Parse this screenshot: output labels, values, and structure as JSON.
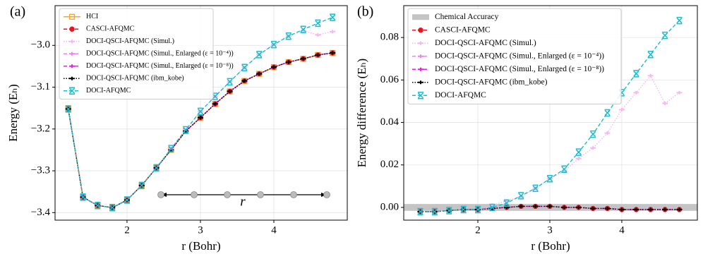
{
  "chart_data": [
    {
      "type": "line",
      "panel_label": "(a)",
      "x_label": "r (Bohr)",
      "y_label": "Energy (Eₕ)",
      "annotation": "r",
      "x": [
        1.2,
        1.4,
        1.6,
        1.8,
        2.0,
        2.2,
        2.4,
        2.6,
        2.8,
        3.0,
        3.2,
        3.4,
        3.6,
        3.8,
        4.0,
        4.2,
        4.4,
        4.6,
        4.8
      ],
      "xlim": [
        1.02,
        5.0
      ],
      "xticks": [
        2,
        3,
        4
      ],
      "ylim": [
        -3.418,
        -2.905
      ],
      "yticks": [
        {
          "value": -3.4,
          "label": "−3.4"
        },
        {
          "value": -3.3,
          "label": "−3.3"
        },
        {
          "value": -3.2,
          "label": "−3.2"
        },
        {
          "value": -3.1,
          "label": "−3.1"
        },
        {
          "value": -3.0,
          "label": "−3.0"
        }
      ],
      "grid": true,
      "legend": "upper left",
      "series": [
        {
          "name": "HCI",
          "color": "#f5a623",
          "marker": "s",
          "dash": "solid",
          "values": [
            -3.152,
            -3.363,
            -3.383,
            -3.388,
            -3.37,
            -3.335,
            -3.293,
            -3.25,
            -3.205,
            -3.173,
            -3.14,
            -3.11,
            -3.085,
            -3.068,
            -3.052,
            -3.04,
            -3.032,
            -3.023,
            -3.018
          ]
        },
        {
          "name": "CASCI-AFQMC",
          "color": "#e8141e",
          "marker": "o",
          "dash": "dashed",
          "values": [
            -3.152,
            -3.363,
            -3.383,
            -3.388,
            -3.37,
            -3.335,
            -3.293,
            -3.25,
            -3.205,
            -3.173,
            -3.14,
            -3.11,
            -3.085,
            -3.068,
            -3.052,
            -3.04,
            -3.032,
            -3.023,
            -3.018
          ]
        },
        {
          "name": "DOCI-QSCI-AFQMC (Simul.)",
          "color": "#f7b6f0",
          "marker": "_",
          "dash": "dotted",
          "values": [
            -3.152,
            -3.363,
            -3.383,
            -3.388,
            -3.37,
            -3.335,
            -3.293,
            -3.247,
            -3.202,
            -3.158,
            -3.122,
            -3.087,
            -3.053,
            -3.022,
            -2.998,
            -2.978,
            -2.965,
            -2.975,
            -2.967
          ]
        },
        {
          "name": "DOCI-QSCI-AFQMC (Simul., Enlarged (ε = 10⁻⁴))",
          "color": "#ee82ee",
          "marker": "_",
          "dash": "dashed",
          "values": [
            -3.152,
            -3.363,
            -3.383,
            -3.388,
            -3.37,
            -3.335,
            -3.293,
            -3.25,
            -3.205,
            -3.173,
            -3.14,
            -3.11,
            -3.085,
            -3.068,
            -3.052,
            -3.04,
            -3.032,
            -3.023,
            -3.018
          ]
        },
        {
          "name": "DOCI-QSCI-AFQMC (Simul., Enlarged (ε = 10⁻⁸))",
          "color": "#e61ee6",
          "marker": "_",
          "dash": "dashed",
          "values": [
            -3.152,
            -3.363,
            -3.383,
            -3.388,
            -3.37,
            -3.335,
            -3.293,
            -3.25,
            -3.205,
            -3.173,
            -3.14,
            -3.11,
            -3.085,
            -3.068,
            -3.052,
            -3.04,
            -3.032,
            -3.023,
            -3.018
          ]
        },
        {
          "name": "DOCI-QSCI-AFQMC (ibm_kobe)",
          "color": "#000000",
          "marker": "_",
          "dash": "dotted",
          "values": [
            -3.152,
            -3.363,
            -3.383,
            -3.388,
            -3.37,
            -3.335,
            -3.293,
            -3.25,
            -3.205,
            -3.173,
            -3.14,
            -3.11,
            -3.085,
            -3.068,
            -3.052,
            -3.04,
            -3.032,
            -3.023,
            -3.018
          ]
        },
        {
          "name": "DOCI-AFQMC",
          "color": "#17becf",
          "marker": "x",
          "dash": "dashed",
          "values": [
            -3.152,
            -3.363,
            -3.383,
            -3.388,
            -3.37,
            -3.335,
            -3.293,
            -3.247,
            -3.202,
            -3.158,
            -3.122,
            -3.087,
            -3.053,
            -3.022,
            -2.998,
            -2.978,
            -2.962,
            -2.947,
            -2.933
          ]
        }
      ]
    },
    {
      "type": "line",
      "panel_label": "(b)",
      "x_label": "r (Bohr)",
      "y_label": "Energy difference (Eₕ)",
      "x": [
        1.2,
        1.4,
        1.6,
        1.8,
        2.0,
        2.2,
        2.4,
        2.6,
        2.8,
        3.0,
        3.2,
        3.4,
        3.6,
        3.8,
        4.0,
        4.2,
        4.4,
        4.6,
        4.8
      ],
      "xlim": [
        0.97,
        5.05
      ],
      "xticks": [
        2,
        3,
        4
      ],
      "ylim": [
        -0.006,
        0.095
      ],
      "yticks": [
        {
          "value": 0,
          "label": "0.00"
        },
        0.02,
        0.04,
        0.06,
        0.08
      ],
      "grid": true,
      "legend": "upper left",
      "band": {
        "name": "Chemical Accuracy",
        "color": "#c4c4c4",
        "range": [
          -0.0016,
          0.0016
        ]
      },
      "series": [
        {
          "name": "CASCI-AFQMC",
          "color": "#e8141e",
          "marker": "o",
          "dash": "dashed",
          "values": [
            -0.002,
            -0.002,
            -0.0015,
            -0.001,
            -0.001,
            -0.0005,
            0,
            0.0005,
            0.0005,
            0.0005,
            0,
            0,
            -0.0005,
            -0.0005,
            -0.001,
            -0.001,
            -0.001,
            -0.001,
            -0.001
          ]
        },
        {
          "name": "DOCI-QSCI-AFQMC (Simul.)",
          "color": "#f7b6f0",
          "marker": "_",
          "dash": "dotted",
          "values": [
            -0.002,
            -0.002,
            -0.0015,
            -0.001,
            -0.001,
            0.001,
            0.003,
            0.005,
            0.009,
            0.0135,
            0.017,
            0.023,
            0.028,
            0.035,
            0.046,
            0.054,
            0.062,
            0.049,
            0.054
          ]
        },
        {
          "name": "DOCI-QSCI-AFQMC (Simul., Enlarged (ε = 10⁻⁴))",
          "color": "#ee82ee",
          "marker": "_",
          "dash": "dashed",
          "values": [
            -0.002,
            -0.002,
            -0.0015,
            -0.001,
            -0.001,
            -0.0005,
            0,
            0.0005,
            0.0005,
            0.0005,
            0,
            0,
            -0.0005,
            -0.0005,
            -0.001,
            -0.001,
            -0.001,
            -0.001,
            -0.001
          ]
        },
        {
          "name": "DOCI-QSCI-AFQMC (Simul., Enlarged (ε = 10⁻⁸))",
          "color": "#e61ee6",
          "marker": "_",
          "dash": "dashed",
          "values": [
            -0.002,
            -0.002,
            -0.0015,
            -0.001,
            -0.001,
            -0.0005,
            0,
            0.0005,
            0.0005,
            0.0005,
            0,
            0,
            -0.0005,
            -0.0005,
            -0.001,
            -0.001,
            -0.001,
            -0.001,
            -0.001
          ]
        },
        {
          "name": "DOCI-QSCI-AFQMC (ibm_kobe)",
          "color": "#000000",
          "marker": "_",
          "dash": "dotted",
          "values": [
            -0.002,
            -0.002,
            -0.0015,
            -0.001,
            -0.001,
            -0.0005,
            0,
            0.0005,
            0.0005,
            0.0005,
            0,
            0,
            -0.0005,
            -0.0005,
            -0.001,
            -0.001,
            -0.001,
            -0.001,
            -0.001
          ]
        },
        {
          "name": "DOCI-AFQMC",
          "color": "#17becf",
          "marker": "x",
          "dash": "dashed",
          "values": [
            -0.002,
            -0.002,
            -0.0015,
            -0.001,
            -0.001,
            0,
            0.002,
            0.0055,
            0.009,
            0.0135,
            0.018,
            0.026,
            0.0345,
            0.0445,
            0.054,
            0.063,
            0.072,
            0.081,
            0.088
          ]
        }
      ]
    }
  ]
}
